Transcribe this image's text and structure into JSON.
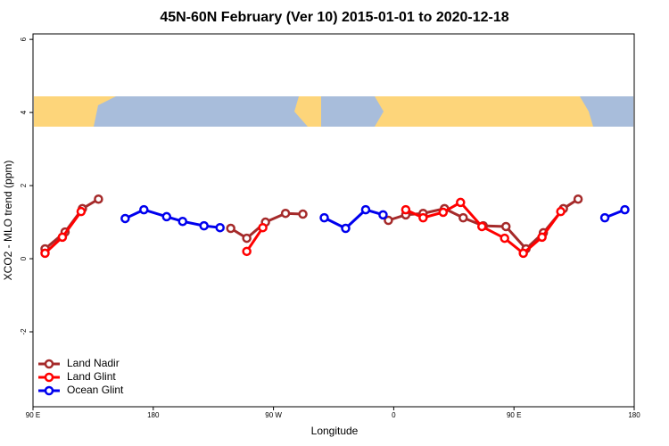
{
  "chart_data": {
    "type": "line",
    "title": "45N-60N February (Ver 10)   2015-01-01 to 2020-12-18",
    "x_label": "Longitude",
    "y_label": "XCO2 - MLO trend (ppm)",
    "xlim": [
      90,
      540
    ],
    "xticks": [
      {
        "value": 90,
        "label": "90 E"
      },
      180,
      {
        "value": 270,
        "label": "90 W"
      },
      {
        "value": 360,
        "label": "0"
      },
      {
        "value": 450,
        "label": "90 E"
      },
      {
        "value": 540,
        "label": "180"
      }
    ],
    "ylim": [
      -4.05,
      6.15
    ],
    "yticks": [
      -2,
      0,
      2,
      4,
      6
    ],
    "legend": "bottom-left",
    "series": [
      {
        "name": "Land Nadir",
        "color": "#a52a2a",
        "x": [
          99,
          114,
          127,
          139,
          null,
          238,
          250,
          264,
          279,
          292,
          null,
          356,
          369,
          382,
          398,
          412,
          427,
          444,
          459,
          472,
          487,
          498
        ],
        "values": [
          0.27,
          0.73,
          1.37,
          1.63,
          null,
          0.83,
          0.56,
          1.0,
          1.24,
          1.22,
          null,
          1.05,
          1.2,
          1.24,
          1.37,
          1.12,
          0.9,
          0.88,
          0.27,
          0.71,
          1.37,
          1.63
        ]
      },
      {
        "name": "Land Glint",
        "color": "#ff0000",
        "x": [
          99,
          112,
          126,
          null,
          250,
          262,
          null,
          369,
          382,
          397,
          410,
          426,
          443,
          457,
          471,
          485
        ],
        "values": [
          0.15,
          0.59,
          1.29,
          null,
          0.2,
          0.85,
          null,
          1.34,
          1.12,
          1.27,
          1.54,
          0.88,
          0.56,
          0.15,
          0.59,
          1.29
        ]
      },
      {
        "name": "Ocean Glint",
        "color": "#0000ee",
        "x": [
          159,
          173,
          190,
          202,
          218,
          230,
          null,
          308,
          324,
          339,
          352,
          null,
          518,
          533
        ],
        "values": [
          1.1,
          1.34,
          1.15,
          1.02,
          0.9,
          0.85,
          null,
          1.12,
          0.83,
          1.34,
          1.2,
          null,
          1.12,
          1.34
        ]
      }
    ]
  }
}
